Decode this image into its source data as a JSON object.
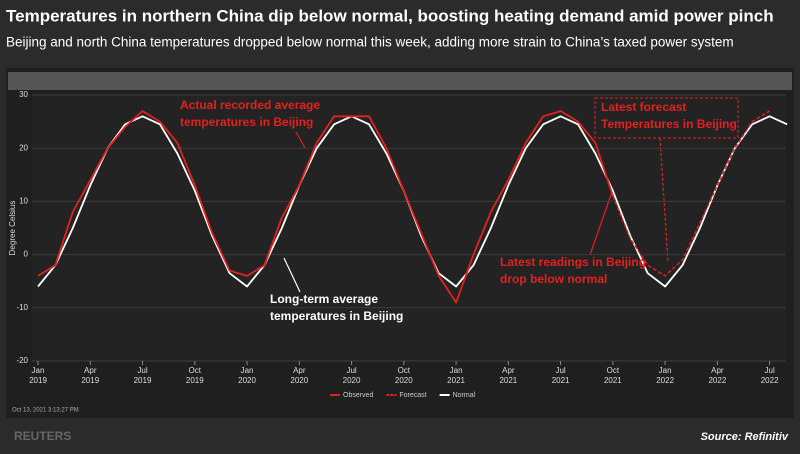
{
  "title": "Temperatures in northern China dip below normal, boosting heating demand amid power pinch",
  "subtitle": "Beijing and north China temperatures dropped below normal this week, adding more strain to China’s taxed power system",
  "timestamp": "Oct 13, 2021 3:13:27 PM",
  "brand": "REUTERS",
  "source": "Source: Refinitiv",
  "chart_data": {
    "type": "line",
    "y_label": "Degree Celsius",
    "categories": [
      "Jan 2019",
      null,
      null,
      "Apr 2019",
      null,
      null,
      "Jul 2019",
      null,
      null,
      "Oct 2019",
      null,
      null,
      "Jan 2020",
      null,
      null,
      "Apr 2020",
      null,
      null,
      "Jul 2020",
      null,
      null,
      "Oct 2020",
      null,
      null,
      "Jan 2021",
      null,
      null,
      "Apr 2021",
      null,
      null,
      "Jul 2021",
      null,
      null,
      "Oct 2021",
      null,
      null,
      "Jan 2022",
      null,
      null,
      "Apr 2022",
      null,
      null,
      "Jul 2022",
      null
    ],
    "ylim": [
      -20,
      30
    ],
    "yticks": [
      -20,
      -10,
      0,
      10,
      20,
      30
    ],
    "grid": true,
    "series": [
      {
        "name": "Observed",
        "color": "#e3211f",
        "dash": false,
        "values": [
          -4,
          -2,
          8,
          14,
          20,
          24,
          27,
          25,
          21,
          13,
          4,
          -3,
          -4,
          -2,
          7,
          13,
          21,
          26,
          26,
          26,
          20,
          12,
          4,
          -4,
          -9,
          0,
          8,
          14,
          21,
          26,
          27,
          25,
          21,
          11,
          null,
          null,
          null,
          null,
          null,
          null,
          null,
          null,
          null,
          null
        ]
      },
      {
        "name": "Forecast",
        "color": "#e3211f",
        "dash": true,
        "values": [
          null,
          null,
          null,
          null,
          null,
          null,
          null,
          null,
          null,
          null,
          null,
          null,
          null,
          null,
          null,
          null,
          null,
          null,
          null,
          null,
          null,
          null,
          null,
          null,
          null,
          null,
          null,
          null,
          null,
          null,
          null,
          null,
          null,
          11,
          3,
          -2,
          -4,
          -1,
          6,
          13,
          20,
          25,
          27,
          null
        ]
      },
      {
        "name": "Normal",
        "color": "#ffffff",
        "dash": false,
        "values": [
          -6,
          -2,
          5,
          13,
          20,
          24.5,
          26,
          24.5,
          19,
          12,
          3.5,
          -3.5,
          -6,
          -2,
          5,
          13,
          20,
          24.5,
          26,
          24.5,
          19,
          12,
          3.5,
          -3.5,
          -6,
          -2,
          5,
          13,
          20,
          24.5,
          26,
          24.5,
          19,
          12,
          3.5,
          -3.5,
          -6,
          -2,
          5,
          13,
          20,
          24.5,
          26,
          24.5
        ]
      }
    ],
    "annotations": [
      [
        "Actual recorded average",
        "temperatures in Beijing"
      ],
      [
        "Long-term average",
        "temperatures in Beijing"
      ],
      [
        "Latest readings in Beijing",
        "drop below normal"
      ],
      [
        "Latest forecast",
        "Temperatures in Beijing"
      ]
    ]
  }
}
